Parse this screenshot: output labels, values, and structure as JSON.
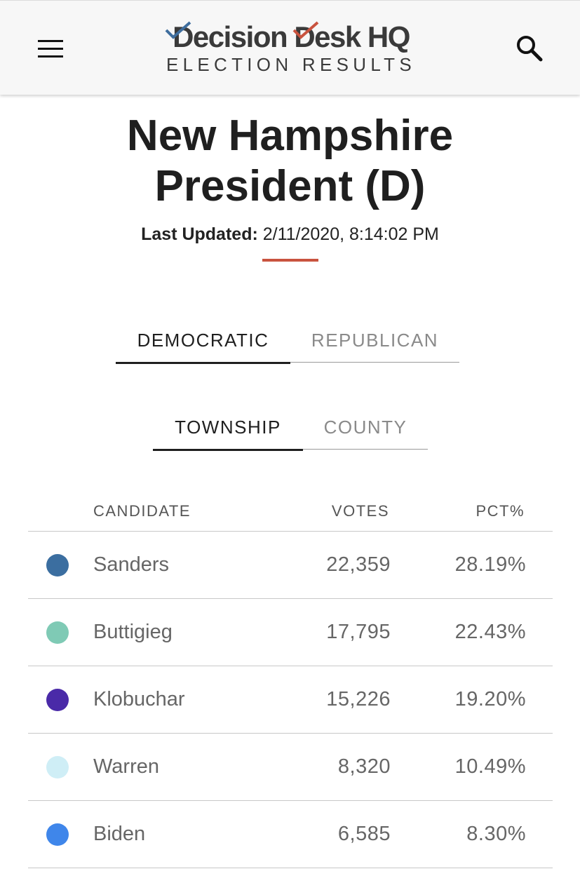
{
  "header": {
    "logo_wordmark": "Decision Desk HQ",
    "logo_subtitle": "ELECTION RESULTS",
    "menu_icon": "hamburger-menu-icon",
    "search_icon": "search-icon",
    "accent_colors": {
      "blue": "#3f6e9e",
      "red": "#c9533f"
    }
  },
  "page": {
    "title_line1": "New Hampshire",
    "title_line2": "President (D)",
    "last_updated_label": "Last Updated:",
    "last_updated_value": "2/11/2020, 8:14:02 PM"
  },
  "party_tabs": [
    {
      "label": "DEMOCRATIC",
      "active": true
    },
    {
      "label": "REPUBLICAN",
      "active": false
    }
  ],
  "level_tabs": [
    {
      "label": "TOWNSHIP",
      "active": true
    },
    {
      "label": "COUNTY",
      "active": false
    }
  ],
  "table": {
    "columns": [
      "CANDIDATE",
      "VOTES",
      "PCT%"
    ],
    "rows": [
      {
        "name": "Sanders",
        "votes": "22,359",
        "pct": "28.19%",
        "color": "#3b6ea0"
      },
      {
        "name": "Buttigieg",
        "votes": "17,795",
        "pct": "22.43%",
        "color": "#7fcab5"
      },
      {
        "name": "Klobuchar",
        "votes": "15,226",
        "pct": "19.20%",
        "color": "#4a2aa8"
      },
      {
        "name": "Warren",
        "votes": "8,320",
        "pct": "10.49%",
        "color": "#cfeef6"
      },
      {
        "name": "Biden",
        "votes": "6,585",
        "pct": "8.30%",
        "color": "#3f86ea"
      }
    ]
  }
}
